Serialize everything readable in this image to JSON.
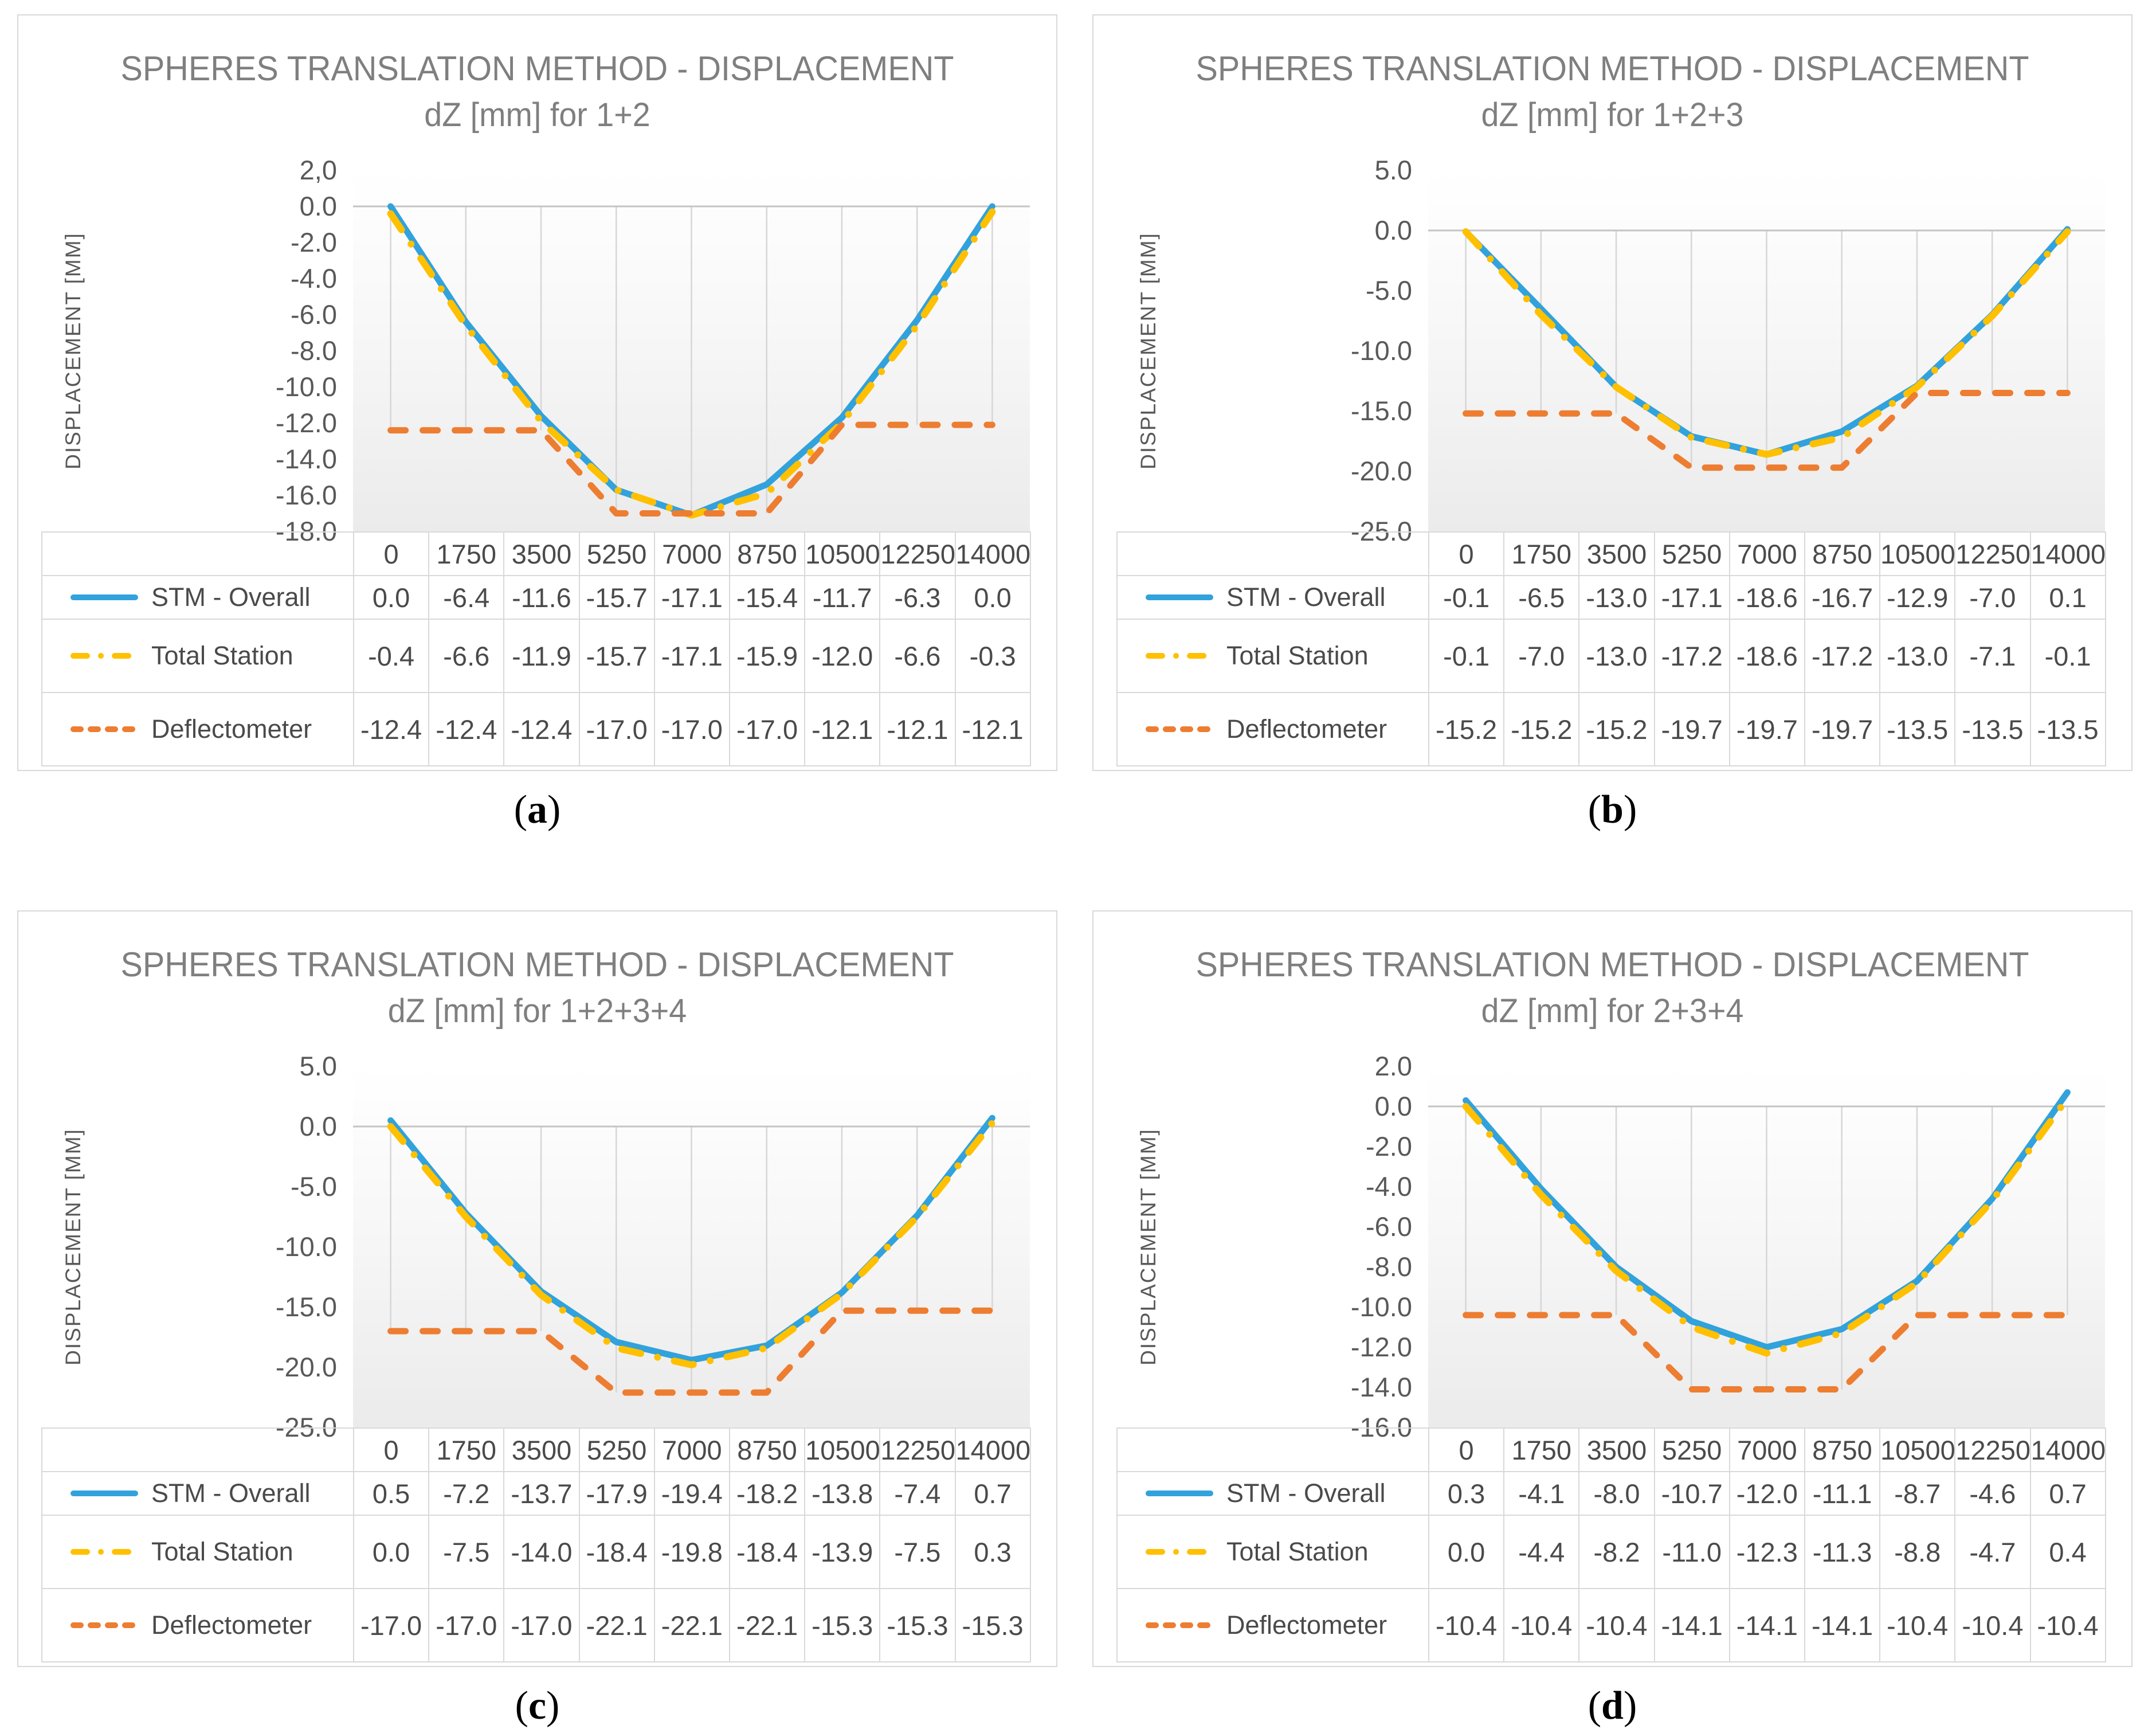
{
  "page": {
    "background": "#FFFFFF"
  },
  "styles": {
    "series_blue": "#31A2DC",
    "series_yellow": "#FFC000",
    "series_orange": "#ED7D31",
    "drop_line": "#D6D6D6",
    "axis_line": "#C4C4C4",
    "table_border": "#D9D9D9",
    "title_text": "#7F7F7F",
    "axis_text": "#595959",
    "table_text": "#4A4A4A",
    "caption_text": "#000000"
  },
  "chart_data": [
    {
      "type": "line",
      "panel_id": "a",
      "caption": {
        "open": "(",
        "letter": "a",
        "close": ")"
      },
      "title": "SPHERES TRANSLATION METHOD - DISPLACEMENT",
      "subtitle": "dZ [mm] for 1+2",
      "ylabel": "DISPLACEMENT [MM]",
      "x_categories": [
        "0",
        "1750",
        "3500",
        "5250",
        "7000",
        "8750",
        "10500",
        "12250",
        "14000"
      ],
      "y_ticks": [
        "2,0",
        "0.0",
        "-2.0",
        "-4.0",
        "-6.0",
        "-8.0",
        "-10.0",
        "-12.0",
        "-14.0",
        "-16.0",
        "-18.0"
      ],
      "ylim": [
        -18,
        2
      ],
      "grid": "vertical-drop-lines",
      "legend_position": "table-left",
      "series": [
        {
          "name": "STM - Overall",
          "style": "solid",
          "color_key": "series_blue",
          "values": [
            0.0,
            -6.4,
            -11.6,
            -15.7,
            -17.1,
            -15.4,
            -11.7,
            -6.3,
            0.0
          ]
        },
        {
          "name": "Total Station",
          "style": "dash-dot",
          "color_key": "series_yellow",
          "values": [
            -0.4,
            -6.6,
            -11.9,
            -15.7,
            -17.1,
            -15.9,
            -12.0,
            -6.6,
            -0.3
          ]
        },
        {
          "name": "Deflectometer",
          "style": "dashed",
          "color_key": "series_orange",
          "values": [
            -12.4,
            -12.4,
            -12.4,
            -17.0,
            -17.0,
            -17.0,
            -12.1,
            -12.1,
            -12.1
          ]
        }
      ]
    },
    {
      "type": "line",
      "panel_id": "b",
      "caption": {
        "open": "(",
        "letter": "b",
        "close": ")"
      },
      "title": "SPHERES TRANSLATION METHOD - DISPLACEMENT",
      "subtitle": "dZ [mm] for 1+2+3",
      "ylabel": "DISPLACEMENT [MM]",
      "x_categories": [
        "0",
        "1750",
        "3500",
        "5250",
        "7000",
        "8750",
        "10500",
        "12250",
        "14000"
      ],
      "y_ticks": [
        "5.0",
        "0.0",
        "-5.0",
        "-10.0",
        "-15.0",
        "-20.0",
        "-25.0"
      ],
      "ylim": [
        -25,
        5
      ],
      "grid": "vertical-drop-lines",
      "legend_position": "table-left",
      "series": [
        {
          "name": "STM - Overall",
          "style": "solid",
          "color_key": "series_blue",
          "values": [
            -0.1,
            -6.5,
            -13.0,
            -17.1,
            -18.6,
            -16.7,
            -12.9,
            -7.0,
            0.1
          ]
        },
        {
          "name": "Total Station",
          "style": "dash-dot",
          "color_key": "series_yellow",
          "values": [
            -0.1,
            -7.0,
            -13.0,
            -17.2,
            -18.6,
            -17.2,
            -13.0,
            -7.1,
            -0.1
          ]
        },
        {
          "name": "Deflectometer",
          "style": "dashed",
          "color_key": "series_orange",
          "values": [
            -15.2,
            -15.2,
            -15.2,
            -19.7,
            -19.7,
            -19.7,
            -13.5,
            -13.5,
            -13.5
          ]
        }
      ]
    },
    {
      "type": "line",
      "panel_id": "c",
      "caption": {
        "open": "(",
        "letter": "c",
        "close": ")"
      },
      "title": "SPHERES TRANSLATION METHOD - DISPLACEMENT",
      "subtitle": "dZ [mm] for 1+2+3+4",
      "ylabel": "DISPLACEMENT [MM]",
      "x_categories": [
        "0",
        "1750",
        "3500",
        "5250",
        "7000",
        "8750",
        "10500",
        "12250",
        "14000"
      ],
      "y_ticks": [
        "5.0",
        "0.0",
        "-5.0",
        "-10.0",
        "-15.0",
        "-20.0",
        "-25.0"
      ],
      "ylim": [
        -25,
        5
      ],
      "grid": "vertical-drop-lines",
      "legend_position": "table-left",
      "series": [
        {
          "name": "STM - Overall",
          "style": "solid",
          "color_key": "series_blue",
          "values": [
            0.5,
            -7.2,
            -13.7,
            -17.9,
            -19.4,
            -18.2,
            -13.8,
            -7.4,
            0.7
          ]
        },
        {
          "name": "Total Station",
          "style": "dash-dot",
          "color_key": "series_yellow",
          "values": [
            0.0,
            -7.5,
            -14.0,
            -18.4,
            -19.8,
            -18.4,
            -13.9,
            -7.5,
            0.3
          ]
        },
        {
          "name": "Deflectometer",
          "style": "dashed",
          "color_key": "series_orange",
          "values": [
            -17.0,
            -17.0,
            -17.0,
            -22.1,
            -22.1,
            -22.1,
            -15.3,
            -15.3,
            -15.3
          ]
        }
      ]
    },
    {
      "type": "line",
      "panel_id": "d",
      "caption": {
        "open": "(",
        "letter": "d",
        "close": ")"
      },
      "title": "SPHERES TRANSLATION METHOD - DISPLACEMENT",
      "subtitle": "dZ [mm] for 2+3+4",
      "ylabel": "DISPLACEMENT [MM]",
      "x_categories": [
        "0",
        "1750",
        "3500",
        "5250",
        "7000",
        "8750",
        "10500",
        "12250",
        "14000"
      ],
      "y_ticks": [
        "2.0",
        "0.0",
        "-2.0",
        "-4.0",
        "-6.0",
        "-8.0",
        "-10.0",
        "-12.0",
        "-14.0",
        "-16.0"
      ],
      "ylim": [
        -16,
        2
      ],
      "grid": "vertical-drop-lines",
      "legend_position": "table-left",
      "series": [
        {
          "name": "STM - Overall",
          "style": "solid",
          "color_key": "series_blue",
          "values": [
            0.3,
            -4.1,
            -8.0,
            -10.7,
            -12.0,
            -11.1,
            -8.7,
            -4.6,
            0.7
          ]
        },
        {
          "name": "Total Station",
          "style": "dash-dot",
          "color_key": "series_yellow",
          "values": [
            0.0,
            -4.4,
            -8.2,
            -11.0,
            -12.3,
            -11.3,
            -8.8,
            -4.7,
            0.4
          ]
        },
        {
          "name": "Deflectometer",
          "style": "dashed",
          "color_key": "series_orange",
          "values": [
            -10.4,
            -10.4,
            -10.4,
            -14.1,
            -14.1,
            -14.1,
            -10.4,
            -10.4,
            -10.4
          ]
        }
      ]
    }
  ]
}
